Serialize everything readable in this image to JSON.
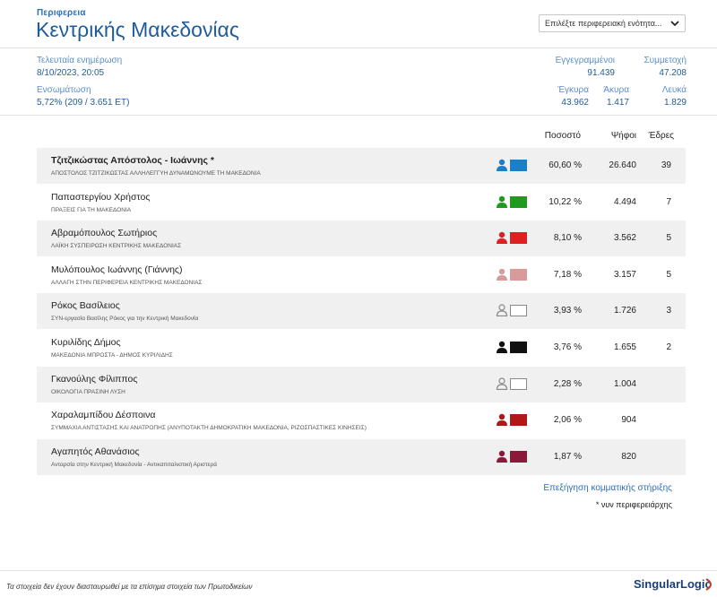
{
  "header": {
    "region_label": "Περιφερεια",
    "region_name": "Κεντρικής Μακεδονίας",
    "unit_select_placeholder": "Επιλέξτε περιφερειακή ενότητα..."
  },
  "stats": {
    "last_update_label": "Τελευταία ενημέρωση",
    "last_update_value": "8/10/2023, 20:05",
    "integration_label": "Ενσωμάτωση",
    "integration_value": "5,72% (209 / 3.651 ΕΤ)",
    "registered_label": "Εγγεγραμμένοι",
    "registered_value": "91.439",
    "turnout_label": "Συμμετοχή",
    "turnout_value": "47.208",
    "valid_label": "Έγκυρα",
    "valid_value": "43.962",
    "invalid_label": "Άκυρα",
    "invalid_value": "1.417",
    "blank_label": "Λευκά",
    "blank_value": "1.829"
  },
  "table": {
    "col_percent": "Ποσοστό",
    "col_votes": "Ψήφοι",
    "col_seats": "Έδρες",
    "rows": [
      {
        "name": "Τζιτζικώστας Απόστολος - Ιωάννης *",
        "party": "ΑΠΟΣΤΟΛΟΣ ΤΖΙΤΖΙΚΩΣΤΑΣ ΑΛΛΗΛΕΓΓΥΗ ΔΥΝΑΜΩΝΟΥΜΕ ΤΗ ΜΑΚΕΔΟΝΙΑ",
        "percent": "60,60 %",
        "votes": "26.640",
        "seats": "39",
        "color": "#1a7fc9",
        "icon_color": "#1a7fc9"
      },
      {
        "name": "Παπαστεργίου Χρήστος",
        "party": "ΠΡΑΞΕΙΣ ΓΙΑ ΤΗ ΜΑΚΕΔΟΝΙΑ",
        "percent": "10,22 %",
        "votes": "4.494",
        "seats": "7",
        "color": "#1e9a1e",
        "icon_color": "#1e9a1e"
      },
      {
        "name": "Αβραμόπουλος Σωτήριος",
        "party": "ΛΑΪΚΗ ΣΥΣΠΕΙΡΩΣΗ ΚΕΝΤΡΙΚΗΣ ΜΑΚΕΔΟΝΙΑΣ",
        "percent": "8,10 %",
        "votes": "3.562",
        "seats": "5",
        "color": "#e02020",
        "icon_color": "#e02020"
      },
      {
        "name": "Μυλόπουλος Ιωάννης (Γιάννης)",
        "party": "ΑΛΛΑΓΗ ΣΤΗΝ ΠΕΡΙΦΕΡΕΙΑ ΚΕΝΤΡΙΚΗΣ ΜΑΚΕΔΟΝΙΑΣ",
        "percent": "7,18 %",
        "votes": "3.157",
        "seats": "5",
        "color": "#d99a9a",
        "icon_color": "#d99a9a"
      },
      {
        "name": "Ρόκος Βασίλειος",
        "party": "ΣΥΝ-εργασία Βασίλης Ρόκος για την Κεντρική Μακεδονία",
        "percent": "3,93 %",
        "votes": "1.726",
        "seats": "3",
        "color": "#ffffff",
        "icon_color": "#888888"
      },
      {
        "name": "Κυριλίδης Δήμος",
        "party": "ΜΑΚΕΔΟΝΙΑ ΜΠΡΟΣΤΑ - ΔΗΜΟΣ ΚΥΡΙΛΙΔΗΣ",
        "percent": "3,76 %",
        "votes": "1.655",
        "seats": "2",
        "color": "#111111",
        "icon_color": "#111111"
      },
      {
        "name": "Γκανούλης Φίλιππος",
        "party": "ΟΙΚΟΛΟΓΙΑ ΠΡΑΣΙΝΗ ΛΥΣΗ",
        "percent": "2,28 %",
        "votes": "1.004",
        "seats": "",
        "color": "#ffffff",
        "icon_color": "#888888"
      },
      {
        "name": "Χαραλαμπίδου Δέσποινα",
        "party": "ΣΥΜΜΑΧΙΑ ΑΝΤΙΣΤΑΣΗΣ ΚΑΙ ΑΝΑΤΡΟΠΗΣ (ΑΝΥΠΟΤΑΚΤΗ ΔΗΜΟΚΡΑΤΙΚΗ ΜΑΚΕΔΟΝΙΑ, ΡΙΖΟΣΠΑΣΤΙΚΕΣ ΚΙΝΗΣΕΙΣ)",
        "percent": "2,06 %",
        "votes": "904",
        "seats": "",
        "color": "#b01818",
        "icon_color": "#b01818"
      },
      {
        "name": "Αγαπητός Αθανάσιος",
        "party": "Ανταρσία στην Κεντρική Μακεδονία - Αντικαπιταλιστική Αριστερά",
        "percent": "1,87 %",
        "votes": "820",
        "seats": "",
        "color": "#8b1a3a",
        "icon_color": "#8b1a3a"
      }
    ]
  },
  "links": {
    "support_explanation": "Επεξήγηση κομματικής στήριξης",
    "incumbent_note": "* νυν περιφερειάρχης"
  },
  "footer": {
    "disclaimer": "Τα στοιχεία δεν έχουν διασταυρωθεί με τα επίσημα στοιχεία των Πρωτοδικείων",
    "logo": "SingularLogic"
  },
  "icons": {
    "dropdown": "chevron-down-icon",
    "person": "person-icon"
  }
}
